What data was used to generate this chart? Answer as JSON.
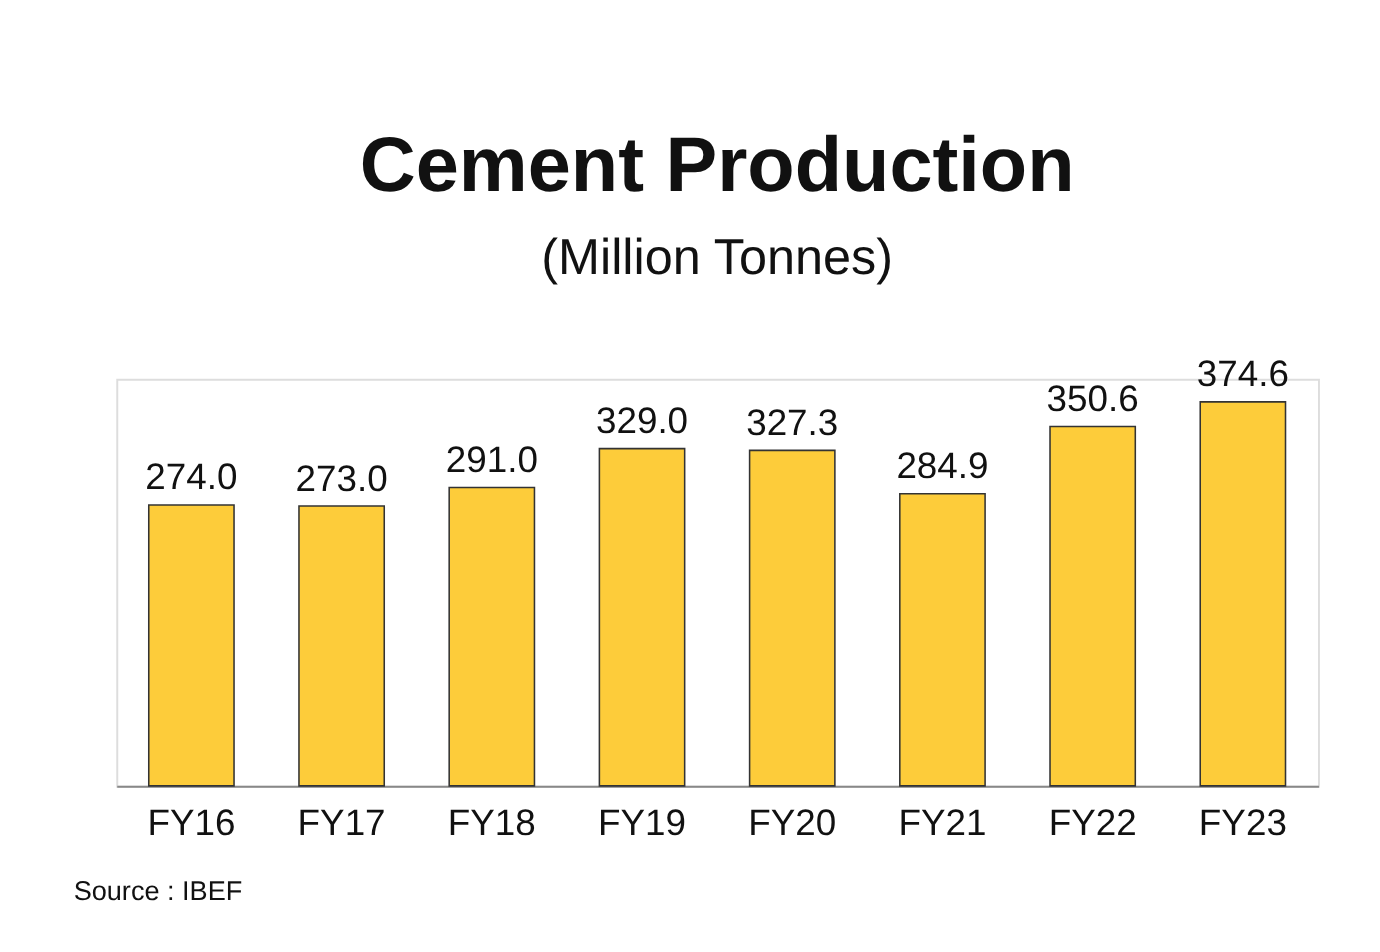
{
  "chart_data": {
    "type": "bar",
    "title": "Cement Production",
    "subtitle": "(Million Tonnes)",
    "categories": [
      "FY16",
      "FY17",
      "FY18",
      "FY19",
      "FY20",
      "FY21",
      "FY22",
      "FY23"
    ],
    "values": [
      274.0,
      273.0,
      291.0,
      329.0,
      327.3,
      284.9,
      350.6,
      374.6
    ],
    "value_labels": [
      "274.0",
      "273.0",
      "291.0",
      "329.0",
      "327.3",
      "284.9",
      "350.6",
      "374.6"
    ],
    "color": "#fdcc3a",
    "grid": false,
    "annotations": [
      "Source : IBEF"
    ]
  }
}
